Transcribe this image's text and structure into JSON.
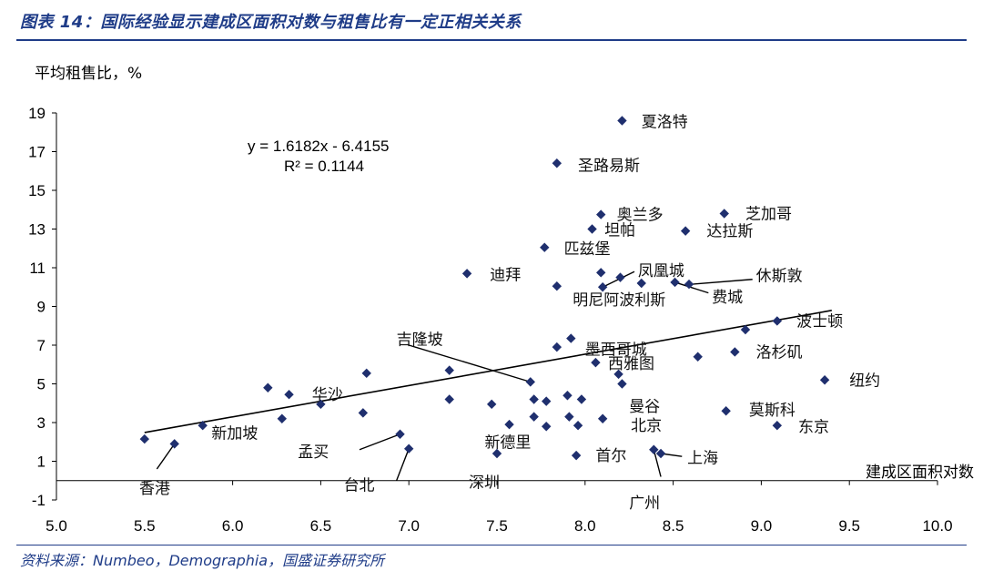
{
  "figure": {
    "title": "图表 14：国际经验显示建成区面积对数与租售比有一定正相关关系",
    "source": "资料来源：Numbeo，Demographia，国盛证券研究所"
  },
  "colors": {
    "marker": "#1f2f6e",
    "title": "#1f3c88",
    "axis": "#000000"
  },
  "chart_data": {
    "type": "scatter",
    "title": "",
    "xlabel": "建成区面积对数",
    "ylabel": "平均租售比，%",
    "xlim": [
      5.0,
      10.0
    ],
    "ylim": [
      -1,
      19
    ],
    "xticks": [
      "5.0",
      "5.5",
      "6.0",
      "6.5",
      "7.0",
      "7.5",
      "8.0",
      "8.5",
      "9.0",
      "9.5",
      "10.0"
    ],
    "yticks": [
      "-1",
      "1",
      "3",
      "5",
      "7",
      "9",
      "11",
      "13",
      "15",
      "17",
      "19"
    ],
    "grid": false,
    "trendline": {
      "equation": "y = 1.6182x - 6.4155",
      "r2": "R² = 0.1144",
      "slope": 1.6182,
      "intercept": -6.4155,
      "x_range": [
        5.5,
        9.4
      ]
    },
    "points": [
      {
        "x": 5.5,
        "y": 2.15
      },
      {
        "x": 5.67,
        "y": 1.9
      },
      {
        "x": 5.83,
        "y": 2.85
      },
      {
        "x": 6.2,
        "y": 4.8
      },
      {
        "x": 6.28,
        "y": 3.2
      },
      {
        "x": 6.32,
        "y": 4.45
      },
      {
        "x": 6.5,
        "y": 3.95
      },
      {
        "x": 6.74,
        "y": 3.5
      },
      {
        "x": 6.76,
        "y": 5.55
      },
      {
        "x": 6.95,
        "y": 2.4
      },
      {
        "x": 7.0,
        "y": 1.65
      },
      {
        "x": 7.23,
        "y": 5.7
      },
      {
        "x": 7.23,
        "y": 4.2
      },
      {
        "x": 7.33,
        "y": 10.7
      },
      {
        "x": 7.47,
        "y": 3.95
      },
      {
        "x": 7.5,
        "y": 1.4
      },
      {
        "x": 7.57,
        "y": 2.9
      },
      {
        "x": 7.69,
        "y": 5.1
      },
      {
        "x": 7.71,
        "y": 4.2
      },
      {
        "x": 7.71,
        "y": 3.3
      },
      {
        "x": 7.77,
        "y": 12.05
      },
      {
        "x": 7.78,
        "y": 4.1
      },
      {
        "x": 7.78,
        "y": 2.8
      },
      {
        "x": 7.84,
        "y": 16.4
      },
      {
        "x": 7.84,
        "y": 10.05
      },
      {
        "x": 7.84,
        "y": 6.9
      },
      {
        "x": 7.9,
        "y": 4.4
      },
      {
        "x": 7.91,
        "y": 3.3
      },
      {
        "x": 7.92,
        "y": 7.35
      },
      {
        "x": 7.95,
        "y": 1.3
      },
      {
        "x": 7.96,
        "y": 2.85
      },
      {
        "x": 7.98,
        "y": 4.2
      },
      {
        "x": 8.04,
        "y": 13.0
      },
      {
        "x": 8.06,
        "y": 6.1
      },
      {
        "x": 8.09,
        "y": 13.75
      },
      {
        "x": 8.09,
        "y": 10.75
      },
      {
        "x": 8.1,
        "y": 10.0
      },
      {
        "x": 8.1,
        "y": 3.2
      },
      {
        "x": 8.19,
        "y": 5.5
      },
      {
        "x": 8.2,
        "y": 10.5
      },
      {
        "x": 8.21,
        "y": 18.6
      },
      {
        "x": 8.21,
        "y": 5.0
      },
      {
        "x": 8.32,
        "y": 10.2
      },
      {
        "x": 8.39,
        "y": 1.6
      },
      {
        "x": 8.43,
        "y": 1.4
      },
      {
        "x": 8.51,
        "y": 10.25
      },
      {
        "x": 8.57,
        "y": 12.9
      },
      {
        "x": 8.59,
        "y": 10.15
      },
      {
        "x": 8.64,
        "y": 6.4
      },
      {
        "x": 8.79,
        "y": 13.8
      },
      {
        "x": 8.8,
        "y": 3.6
      },
      {
        "x": 8.85,
        "y": 6.65
      },
      {
        "x": 8.91,
        "y": 7.8
      },
      {
        "x": 9.09,
        "y": 8.25
      },
      {
        "x": 9.09,
        "y": 2.85
      },
      {
        "x": 9.36,
        "y": 5.2
      }
    ],
    "labels": [
      {
        "text": "夏洛特",
        "x": 8.32,
        "y": 18.55,
        "anchor": "start"
      },
      {
        "text": "圣路易斯",
        "x": 7.96,
        "y": 16.3,
        "anchor": "start"
      },
      {
        "text": "芝加哥",
        "x": 8.91,
        "y": 13.8,
        "anchor": "start"
      },
      {
        "text": "奥兰多",
        "x": 8.18,
        "y": 13.75,
        "anchor": "start"
      },
      {
        "text": "坦帕",
        "x": 8.11,
        "y": 12.95,
        "anchor": "start"
      },
      {
        "text": "达拉斯",
        "x": 8.69,
        "y": 12.9,
        "anchor": "start"
      },
      {
        "text": "匹兹堡",
        "x": 7.88,
        "y": 12.0,
        "anchor": "start"
      },
      {
        "text": "迪拜",
        "x": 7.46,
        "y": 10.65,
        "anchor": "start"
      },
      {
        "text": "凤凰城",
        "x": 8.3,
        "y": 10.85,
        "anchor": "start"
      },
      {
        "text": "休斯敦",
        "x": 8.97,
        "y": 10.6,
        "anchor": "start"
      },
      {
        "text": "明尼阿波利斯",
        "x": 7.93,
        "y": 9.35,
        "anchor": "start"
      },
      {
        "text": "费城",
        "x": 8.72,
        "y": 9.5,
        "anchor": "start"
      },
      {
        "text": "波士顿",
        "x": 9.2,
        "y": 8.25,
        "anchor": "start"
      },
      {
        "text": "吉隆坡",
        "x": 6.93,
        "y": 7.3,
        "anchor": "start"
      },
      {
        "text": "墨西哥城",
        "x": 8.0,
        "y": 6.8,
        "anchor": "start"
      },
      {
        "text": "洛杉矶",
        "x": 8.97,
        "y": 6.65,
        "anchor": "start"
      },
      {
        "text": "西雅图",
        "x": 8.13,
        "y": 6.05,
        "anchor": "start"
      },
      {
        "text": "纽约",
        "x": 9.5,
        "y": 5.2,
        "anchor": "start"
      },
      {
        "text": "华沙",
        "x": 6.45,
        "y": 4.45,
        "anchor": "start"
      },
      {
        "text": "曼谷",
        "x": 8.25,
        "y": 3.85,
        "anchor": "start"
      },
      {
        "text": "莫斯科",
        "x": 8.93,
        "y": 3.65,
        "anchor": "start"
      },
      {
        "text": "北京",
        "x": 8.26,
        "y": 2.85,
        "anchor": "start"
      },
      {
        "text": "东京",
        "x": 9.21,
        "y": 2.8,
        "anchor": "start"
      },
      {
        "text": "新加坡",
        "x": 5.88,
        "y": 2.45,
        "anchor": "start"
      },
      {
        "text": "新德里",
        "x": 7.43,
        "y": 2.0,
        "anchor": "start"
      },
      {
        "text": "孟买",
        "x": 6.37,
        "y": 1.5,
        "anchor": "start"
      },
      {
        "text": "首尔",
        "x": 8.06,
        "y": 1.3,
        "anchor": "start"
      },
      {
        "text": "上海",
        "x": 8.58,
        "y": 1.2,
        "anchor": "start"
      },
      {
        "text": "深圳",
        "x": 7.34,
        "y": -0.08,
        "anchor": "start"
      },
      {
        "text": "台北",
        "x": 6.63,
        "y": -0.22,
        "anchor": "start"
      },
      {
        "text": "香港",
        "x": 5.47,
        "y": -0.38,
        "anchor": "start"
      },
      {
        "text": "广州",
        "x": 8.25,
        "y": -1.15,
        "anchor": "start"
      }
    ],
    "leaders": [
      [
        [
          8.61,
          10.15
        ],
        [
          8.95,
          10.4
        ]
      ],
      [
        [
          8.51,
          10.25
        ],
        [
          8.7,
          9.7
        ]
      ],
      [
        [
          8.1,
          10.0
        ],
        [
          8.28,
          10.8
        ]
      ],
      [
        [
          7.69,
          5.1
        ],
        [
          7.0,
          7.0
        ]
      ],
      [
        [
          5.67,
          1.9
        ],
        [
          5.57,
          0.6
        ]
      ],
      [
        [
          6.95,
          2.4
        ],
        [
          6.72,
          1.6
        ]
      ],
      [
        [
          7.0,
          1.65
        ],
        [
          6.93,
          0.0
        ]
      ],
      [
        [
          8.39,
          1.6
        ],
        [
          8.43,
          0.2
        ]
      ],
      [
        [
          8.43,
          1.4
        ],
        [
          8.55,
          1.25
        ]
      ]
    ]
  }
}
